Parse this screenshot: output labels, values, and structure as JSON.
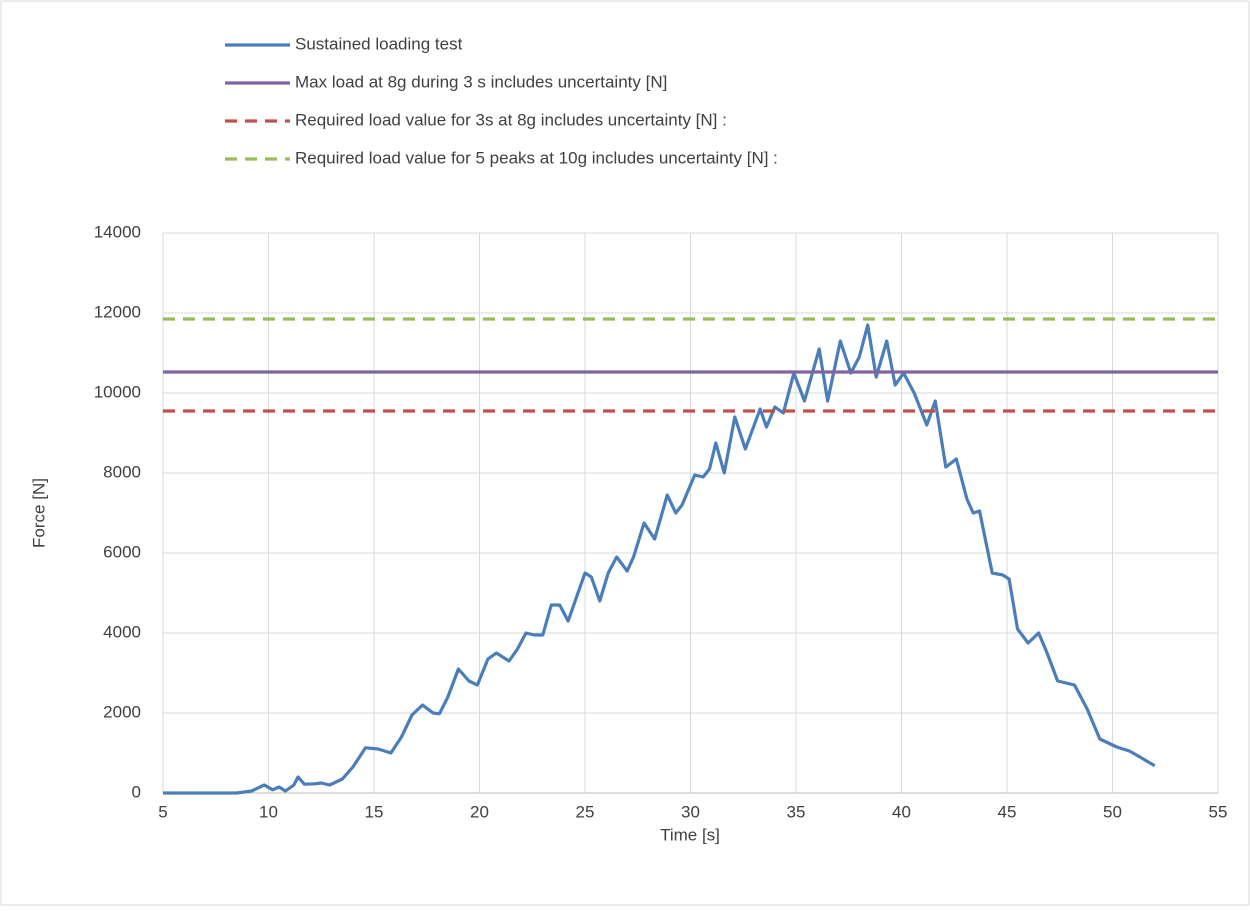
{
  "chart_data": {
    "type": "line",
    "x_label": "Time [s]",
    "y_label": "Force [N]",
    "xlim": [
      5,
      55
    ],
    "xticks": [
      5,
      10,
      15,
      20,
      25,
      30,
      35,
      40,
      45,
      50,
      55
    ],
    "ylim": [
      0,
      14000
    ],
    "yticks": [
      0,
      2000,
      4000,
      6000,
      8000,
      10000,
      12000,
      14000
    ],
    "grid": true,
    "legend": "top",
    "series": [
      {
        "name": "Sustained loading test",
        "color": "#4a7ebb",
        "dashed": false,
        "x": [
          5,
          8.5,
          9.2,
          9.8,
          10.2,
          10.5,
          10.8,
          11.2,
          11.4,
          11.7,
          12.2,
          12.5,
          12.9,
          13.5,
          14,
          14.6,
          15.2,
          15.8,
          16.3,
          16.8,
          17.3,
          17.8,
          18.1,
          18.5,
          19,
          19.5,
          19.9,
          20.4,
          20.8,
          21.4,
          21.8,
          22.2,
          22.6,
          23,
          23.4,
          23.8,
          24.2,
          24.6,
          25,
          25.3,
          25.7,
          26.1,
          26.5,
          27,
          27.3,
          27.8,
          28.3,
          28.9,
          29.3,
          29.6,
          30.2,
          30.6,
          30.9,
          31.2,
          31.6,
          32.1,
          32.6,
          33.3,
          33.6,
          34,
          34.4,
          34.9,
          35.4,
          36.1,
          36.5,
          37.1,
          37.6,
          38,
          38.4,
          38.8,
          39.3,
          39.7,
          40.1,
          40.6,
          41.2,
          41.6,
          42.1,
          42.6,
          43.1,
          43.4,
          43.7,
          44.3,
          44.8,
          45.1,
          45.5,
          46,
          46.5,
          46.9,
          47.4,
          48.2,
          48.8,
          49.4,
          50.2,
          50.8,
          51.3,
          52
        ],
        "values": [
          0,
          0,
          50,
          200,
          80,
          150,
          50,
          200,
          400,
          220,
          230,
          250,
          200,
          350,
          650,
          1130,
          1100,
          1000,
          1400,
          1950,
          2200,
          2000,
          1980,
          2400,
          3100,
          2800,
          2700,
          3350,
          3500,
          3300,
          3600,
          4000,
          3950,
          3950,
          4700,
          4700,
          4300,
          4900,
          5500,
          5400,
          4800,
          5500,
          5900,
          5550,
          5900,
          6750,
          6350,
          7450,
          7000,
          7200,
          7950,
          7900,
          8100,
          8750,
          8000,
          9400,
          8600,
          9600,
          9150,
          9650,
          9500,
          10500,
          9800,
          11100,
          9800,
          11300,
          10500,
          10900,
          11700,
          10400,
          11300,
          10200,
          10500,
          10000,
          9200,
          9800,
          8150,
          8350,
          7350,
          7000,
          7050,
          5500,
          5450,
          5350,
          4100,
          3750,
          4000,
          3500,
          2800,
          2700,
          2100,
          1350,
          1150,
          1050,
          900,
          680
        ]
      },
      {
        "name": "Max load at 8g during 3 s includes uncertainty [N]",
        "color": "#8064a2",
        "dashed": false,
        "x": [
          5,
          55
        ],
        "values": [
          10525,
          10525
        ]
      },
      {
        "name": "Required load value for 3s at 8g includes uncertainty [N] :",
        "color": "#c0504d",
        "dashed": true,
        "x": [
          5,
          55
        ],
        "values": [
          9550,
          9550
        ]
      },
      {
        "name": "Required load value for 5 peaks at 10g includes uncertainty [N] :",
        "color": "#9bbb59",
        "dashed": true,
        "x": [
          5,
          55
        ],
        "values": [
          11850,
          11850
        ]
      }
    ]
  }
}
